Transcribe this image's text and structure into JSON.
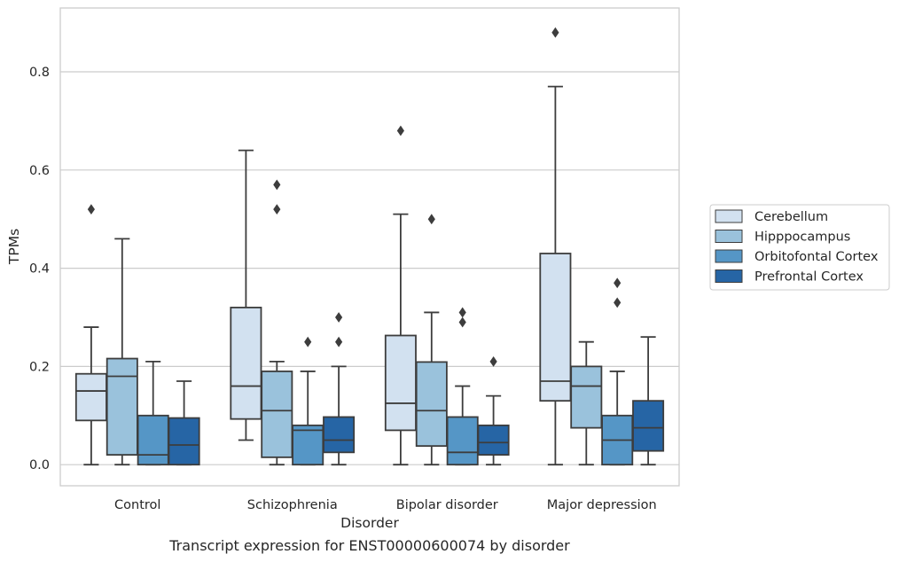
{
  "chart_data": {
    "type": "box",
    "xlabel": "Disorder",
    "ylabel": "TPMs",
    "ylim": [
      -0.043,
      0.93
    ],
    "yticks": [
      0.0,
      0.2,
      0.4,
      0.6,
      0.8
    ],
    "ytick_labels": [
      "0.0",
      "0.2",
      "0.4",
      "0.6",
      "0.8"
    ],
    "grid": "horizontal",
    "legend_position": "right",
    "categories": [
      "Control",
      "Schizophrenia",
      "Bipolar disorder",
      "Major depression"
    ],
    "series": [
      {
        "name": "Cerebellum",
        "color": "#d2e1f0",
        "boxes": [
          {
            "whislo": 0.0,
            "q1": 0.09,
            "med": 0.15,
            "q3": 0.185,
            "whishi": 0.28,
            "fliers": [
              0.52
            ]
          },
          {
            "whislo": 0.05,
            "q1": 0.093,
            "med": 0.16,
            "q3": 0.32,
            "whishi": 0.64,
            "fliers": []
          },
          {
            "whislo": 0.0,
            "q1": 0.07,
            "med": 0.125,
            "q3": 0.263,
            "whishi": 0.51,
            "fliers": [
              0.68
            ]
          },
          {
            "whislo": 0.0,
            "q1": 0.13,
            "med": 0.17,
            "q3": 0.43,
            "whishi": 0.77,
            "fliers": [
              0.88
            ]
          }
        ]
      },
      {
        "name": "Hipppocampus",
        "color": "#9ac2dc",
        "boxes": [
          {
            "whislo": 0.0,
            "q1": 0.02,
            "med": 0.18,
            "q3": 0.216,
            "whishi": 0.46,
            "fliers": []
          },
          {
            "whislo": 0.0,
            "q1": 0.015,
            "med": 0.11,
            "q3": 0.19,
            "whishi": 0.21,
            "fliers": [
              0.52,
              0.57
            ]
          },
          {
            "whislo": 0.0,
            "q1": 0.038,
            "med": 0.11,
            "q3": 0.209,
            "whishi": 0.31,
            "fliers": [
              0.5
            ]
          },
          {
            "whislo": 0.0,
            "q1": 0.075,
            "med": 0.16,
            "q3": 0.2,
            "whishi": 0.25,
            "fliers": []
          }
        ]
      },
      {
        "name": "Orbitofontal Cortex",
        "color": "#5596c6",
        "boxes": [
          {
            "whislo": 0.0,
            "q1": 0.0,
            "med": 0.02,
            "q3": 0.1,
            "whishi": 0.21,
            "fliers": []
          },
          {
            "whislo": 0.0,
            "q1": 0.0,
            "med": 0.07,
            "q3": 0.08,
            "whishi": 0.19,
            "fliers": [
              0.25
            ]
          },
          {
            "whislo": 0.0,
            "q1": 0.0,
            "med": 0.025,
            "q3": 0.097,
            "whishi": 0.16,
            "fliers": [
              0.29,
              0.31
            ]
          },
          {
            "whislo": 0.0,
            "q1": 0.0,
            "med": 0.05,
            "q3": 0.1,
            "whishi": 0.19,
            "fliers": [
              0.33,
              0.37
            ]
          }
        ]
      },
      {
        "name": "Prefrontal Cortex",
        "color": "#2665a5",
        "boxes": [
          {
            "whislo": 0.0,
            "q1": 0.0,
            "med": 0.04,
            "q3": 0.095,
            "whishi": 0.17,
            "fliers": []
          },
          {
            "whislo": 0.0,
            "q1": 0.025,
            "med": 0.05,
            "q3": 0.097,
            "whishi": 0.2,
            "fliers": [
              0.25,
              0.3
            ]
          },
          {
            "whislo": 0.0,
            "q1": 0.02,
            "med": 0.045,
            "q3": 0.08,
            "whishi": 0.14,
            "fliers": [
              0.21
            ]
          },
          {
            "whislo": 0.0,
            "q1": 0.028,
            "med": 0.075,
            "q3": 0.13,
            "whishi": 0.26,
            "fliers": []
          }
        ]
      }
    ]
  },
  "caption": "Transcript expression for ENST00000600074 by disorder"
}
